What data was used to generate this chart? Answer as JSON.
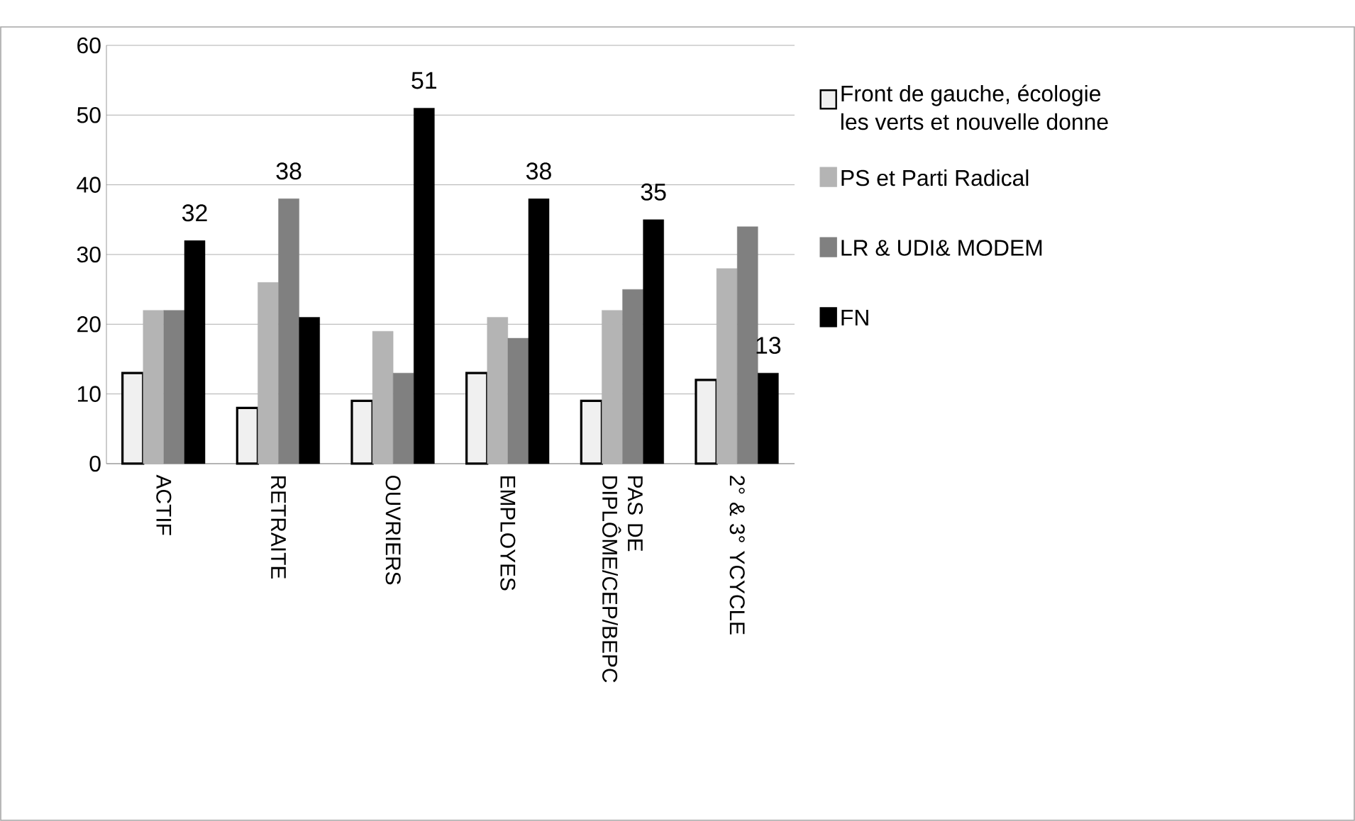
{
  "chart_data": {
    "type": "bar",
    "categories": [
      "ACTIF",
      "RETRAITE",
      "OUVRIERS",
      "EMPLOYES",
      "PAS DE DIPLÔME/CEP/BEPC",
      "2° & 3° YCYCLE"
    ],
    "series": [
      {
        "name": "Front de gauche, écologie les verts et nouvelle donne",
        "color": "#f0f0f0",
        "values": [
          13,
          8,
          9,
          13,
          9,
          12
        ]
      },
      {
        "name": "PS et Parti Radical",
        "color": "#b4b4b4",
        "values": [
          22,
          26,
          19,
          21,
          22,
          28
        ]
      },
      {
        "name": "LR & UDI& MODEM",
        "color": "#808080",
        "values": [
          22,
          38,
          13,
          18,
          25,
          34
        ],
        "value_labels": [
          null,
          "38",
          null,
          null,
          null,
          null
        ]
      },
      {
        "name": "FN",
        "color": "#000000",
        "values": [
          32,
          21,
          51,
          38,
          35,
          13
        ],
        "value_labels": [
          "32",
          null,
          "51",
          "38",
          "35",
          "13"
        ]
      }
    ],
    "ylim": [
      0,
      60
    ],
    "yticks": [
      0,
      10,
      20,
      30,
      40,
      50,
      60
    ],
    "grid": "y",
    "legend": "right"
  }
}
